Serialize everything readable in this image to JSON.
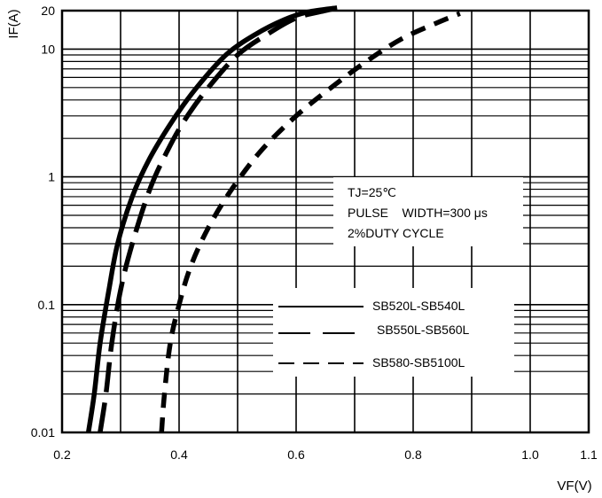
{
  "chart_data": {
    "type": "line",
    "y_scale": "log",
    "xlim": [
      0.2,
      1.1
    ],
    "ylim": [
      0.01,
      20
    ],
    "xlabel": "VF(V)",
    "ylabel": "IF(A)",
    "x_ticks": [
      "0.2",
      "0.4",
      "0.6",
      "0.8",
      "1.0",
      "1.1"
    ],
    "y_ticks": [
      "0.01",
      "0.1",
      "1",
      "10",
      "20"
    ],
    "grid": true,
    "conditions": [
      "TJ=25℃",
      "PULSE    WIDTH=300 μs",
      "2%DUTY CYCLE"
    ],
    "series": [
      {
        "name": "SB520L-SB540L",
        "style": "solid",
        "points": [
          [
            0.245,
            0.01
          ],
          [
            0.255,
            0.02
          ],
          [
            0.265,
            0.05
          ],
          [
            0.28,
            0.13
          ],
          [
            0.295,
            0.3
          ],
          [
            0.32,
            0.7
          ],
          [
            0.35,
            1.4
          ],
          [
            0.39,
            2.8
          ],
          [
            0.43,
            5
          ],
          [
            0.48,
            9
          ],
          [
            0.53,
            13
          ],
          [
            0.58,
            17
          ],
          [
            0.62,
            19.5
          ],
          [
            0.67,
            21
          ]
        ]
      },
      {
        "name": "SB550L-SB560L",
        "style": "long-dash",
        "points": [
          [
            0.265,
            0.01
          ],
          [
            0.275,
            0.02
          ],
          [
            0.285,
            0.05
          ],
          [
            0.3,
            0.13
          ],
          [
            0.32,
            0.3
          ],
          [
            0.35,
            0.8
          ],
          [
            0.38,
            1.6
          ],
          [
            0.41,
            2.8
          ],
          [
            0.45,
            5
          ],
          [
            0.5,
            9
          ],
          [
            0.55,
            13
          ],
          [
            0.6,
            17.5
          ],
          [
            0.65,
            20
          ],
          [
            0.67,
            21
          ]
        ]
      },
      {
        "name": "SB580-SB5100L",
        "style": "short-dash",
        "points": [
          [
            0.37,
            0.01
          ],
          [
            0.375,
            0.02
          ],
          [
            0.385,
            0.05
          ],
          [
            0.4,
            0.1
          ],
          [
            0.42,
            0.2
          ],
          [
            0.45,
            0.4
          ],
          [
            0.49,
            0.8
          ],
          [
            0.54,
            1.6
          ],
          [
            0.6,
            3
          ],
          [
            0.66,
            5
          ],
          [
            0.72,
            8
          ],
          [
            0.78,
            12
          ],
          [
            0.84,
            16
          ],
          [
            0.88,
            19
          ]
        ]
      }
    ]
  }
}
